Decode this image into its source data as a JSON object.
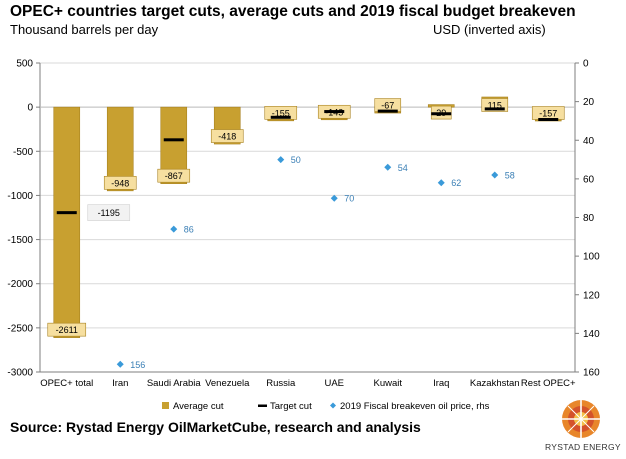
{
  "title": "OPEC+ countries target cuts, average cuts and 2019 fiscal budget breakeven",
  "subtitle_left": "Thousand barrels per day",
  "subtitle_right": "USD (inverted axis)",
  "source": "Source: Rystad Energy OilMarketCube, research and analysis",
  "logo_text": "RYSTAD ENERGY",
  "colors": {
    "bar": "#c8a030",
    "bar_edge": "#a88220",
    "label_bg": "#f6dfa0",
    "target": "#000000",
    "marker": "#3a9ad9",
    "grid": "#d9d9d9",
    "axis": "#7f7f7f"
  },
  "chart_data": {
    "type": "bar",
    "categories": [
      "OPEC+ total",
      "Iran",
      "Saudi Arabia",
      "Venezuela",
      "Russia",
      "UAE",
      "Kuwait",
      "Iraq",
      "Kazakhstan",
      "Rest OPEC+"
    ],
    "series": [
      {
        "name": "Average cut",
        "type": "bar",
        "axis": "left",
        "values": [
          -2611,
          -948,
          -867,
          -418,
          -155,
          -143,
          -67,
          29,
          115,
          -157
        ]
      },
      {
        "name": "Target cut",
        "type": "marker-dash",
        "axis": "left",
        "values": [
          -1195,
          null,
          -370,
          null,
          -115,
          -50,
          -45,
          -75,
          -20,
          -140
        ]
      },
      {
        "name": "2019 Fiscal breakeven oil price, rhs",
        "type": "scatter",
        "axis": "right",
        "values": [
          null,
          156,
          86,
          null,
          50,
          70,
          54,
          62,
          58,
          null
        ]
      }
    ],
    "bar_labels": [
      "-2611",
      "-948",
      "-867",
      "-418",
      "-155",
      "-143",
      "-67",
      "29",
      "115",
      "-157"
    ],
    "target_labels": [
      "-1195",
      "",
      "",
      "",
      "",
      "",
      "",
      "",
      "",
      ""
    ],
    "marker_labels": [
      "",
      "156",
      "86",
      "",
      "50",
      "70",
      "54",
      "62",
      "58",
      ""
    ],
    "yaxis_left": {
      "min": -3000,
      "max": 500,
      "ticks": [
        "500",
        "0",
        "-500",
        "-1000",
        "-1500",
        "-2000",
        "-2500",
        "-3000"
      ]
    },
    "yaxis_right": {
      "min": 0,
      "max": 160,
      "inverted": true,
      "ticks": [
        "0",
        "20",
        "40",
        "60",
        "80",
        "100",
        "120",
        "140",
        "160"
      ]
    },
    "grid": true,
    "legend_position": "bottom",
    "legend": [
      "Average cut",
      "Target cut",
      "2019 Fiscal breakeven oil price, rhs"
    ]
  }
}
